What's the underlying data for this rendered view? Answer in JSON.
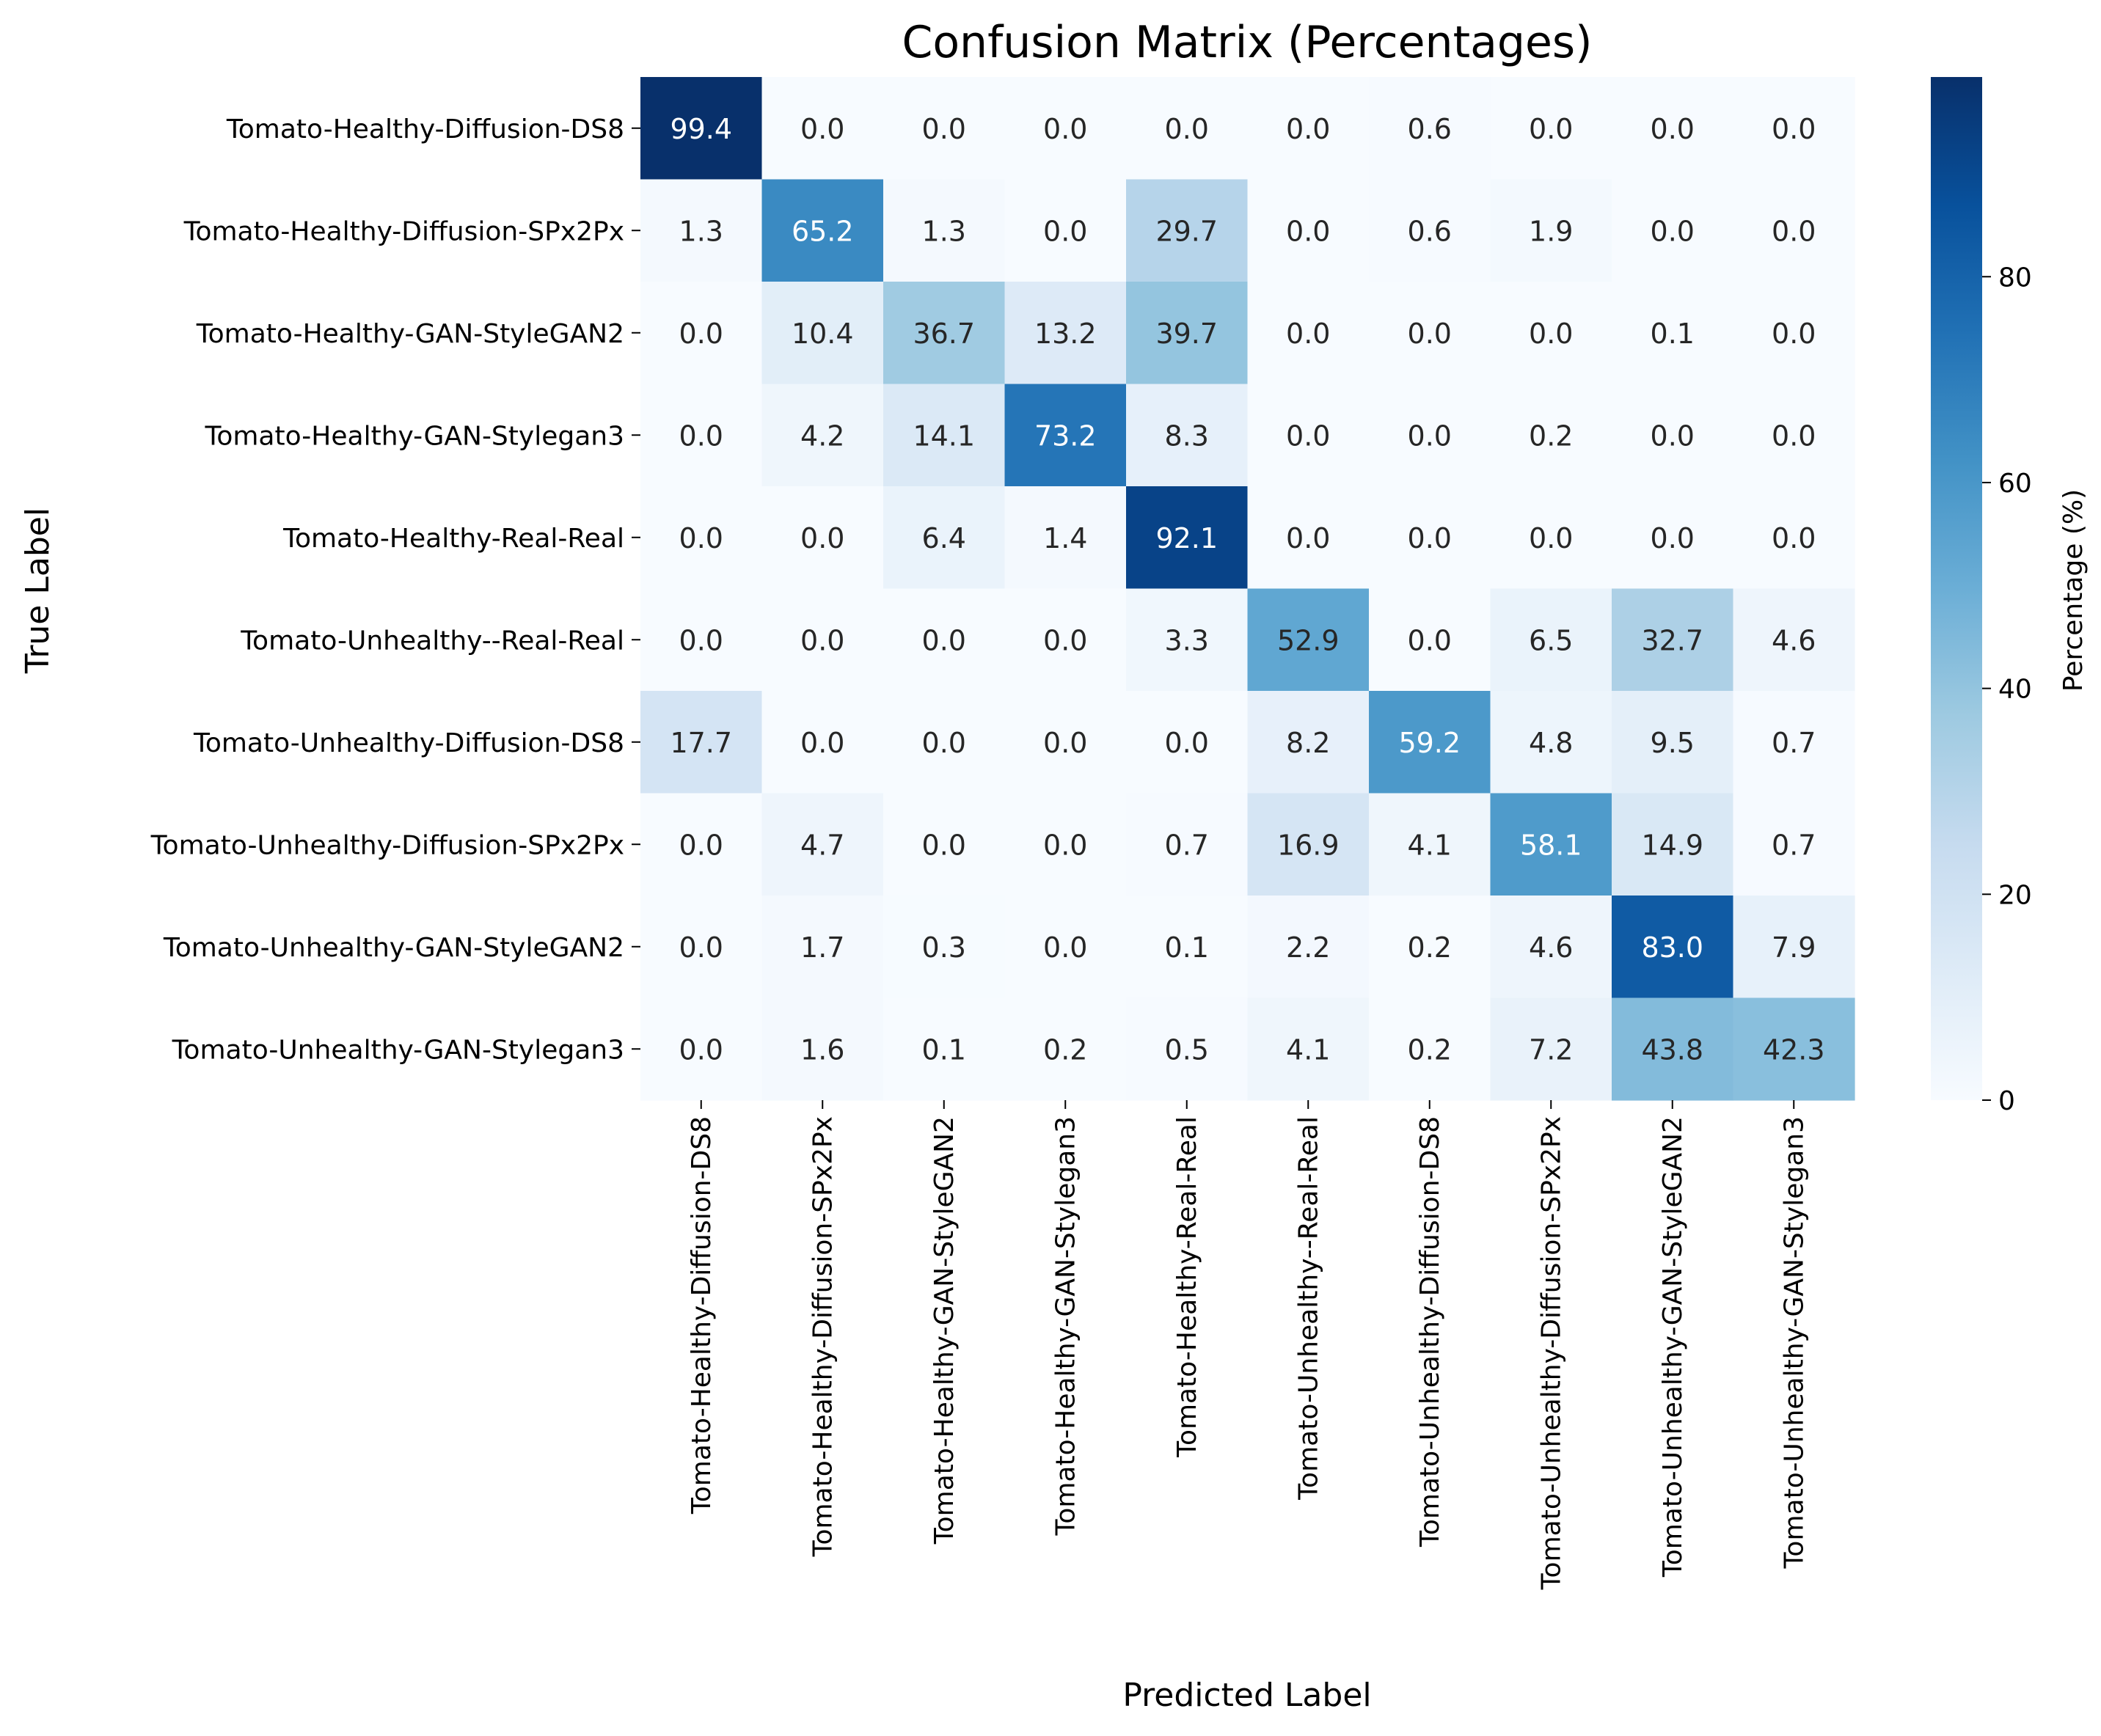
{
  "chart_data": {
    "type": "heatmap",
    "title": "Confusion Matrix (Percentages)",
    "xlabel": "Predicted Label",
    "ylabel": "True Label",
    "colorbar_label": "Percentage (%)",
    "colorscale": "Blues",
    "color_range": [
      0,
      99.4
    ],
    "colorbar_ticks": [
      "0",
      "20",
      "40",
      "60",
      "80"
    ],
    "colorbar_tick_values": [
      0,
      20,
      40,
      60,
      80
    ],
    "row_labels": [
      "Tomato-Healthy-Diffusion-DS8",
      "Tomato-Healthy-Diffusion-SPx2Px",
      "Tomato-Healthy-GAN-StyleGAN2",
      "Tomato-Healthy-GAN-Stylegan3",
      "Tomato-Healthy-Real-Real",
      "Tomato-Unhealthy--Real-Real",
      "Tomato-Unhealthy-Diffusion-DS8",
      "Tomato-Unhealthy-Diffusion-SPx2Px",
      "Tomato-Unhealthy-GAN-StyleGAN2",
      "Tomato-Unhealthy-GAN-Stylegan3"
    ],
    "col_labels": [
      "Tomato-Healthy-Diffusion-DS8",
      "Tomato-Healthy-Diffusion-SPx2Px",
      "Tomato-Healthy-GAN-StyleGAN2",
      "Tomato-Healthy-GAN-Stylegan3",
      "Tomato-Healthy-Real-Real",
      "Tomato-Unhealthy--Real-Real",
      "Tomato-Unhealthy-Diffusion-DS8",
      "Tomato-Unhealthy-Diffusion-SPx2Px",
      "Tomato-Unhealthy-GAN-StyleGAN2",
      "Tomato-Unhealthy-GAN-Stylegan3"
    ],
    "values": [
      [
        99.4,
        0.0,
        0.0,
        0.0,
        0.0,
        0.0,
        0.6,
        0.0,
        0.0,
        0.0
      ],
      [
        1.3,
        65.2,
        1.3,
        0.0,
        29.7,
        0.0,
        0.6,
        1.9,
        0.0,
        0.0
      ],
      [
        0.0,
        10.4,
        36.7,
        13.2,
        39.7,
        0.0,
        0.0,
        0.0,
        0.1,
        0.0
      ],
      [
        0.0,
        4.2,
        14.1,
        73.2,
        8.3,
        0.0,
        0.0,
        0.2,
        0.0,
        0.0
      ],
      [
        0.0,
        0.0,
        6.4,
        1.4,
        92.1,
        0.0,
        0.0,
        0.0,
        0.0,
        0.0
      ],
      [
        0.0,
        0.0,
        0.0,
        0.0,
        3.3,
        52.9,
        0.0,
        6.5,
        32.7,
        4.6
      ],
      [
        17.7,
        0.0,
        0.0,
        0.0,
        0.0,
        8.2,
        59.2,
        4.8,
        9.5,
        0.7
      ],
      [
        0.0,
        4.7,
        0.0,
        0.0,
        0.7,
        16.9,
        4.1,
        58.1,
        14.9,
        0.7
      ],
      [
        0.0,
        1.7,
        0.3,
        0.0,
        0.1,
        2.2,
        0.2,
        4.6,
        83.0,
        7.9
      ],
      [
        0.0,
        1.6,
        0.1,
        0.2,
        0.5,
        4.1,
        0.2,
        7.2,
        43.8,
        42.3
      ]
    ],
    "value_format": "0.0"
  }
}
